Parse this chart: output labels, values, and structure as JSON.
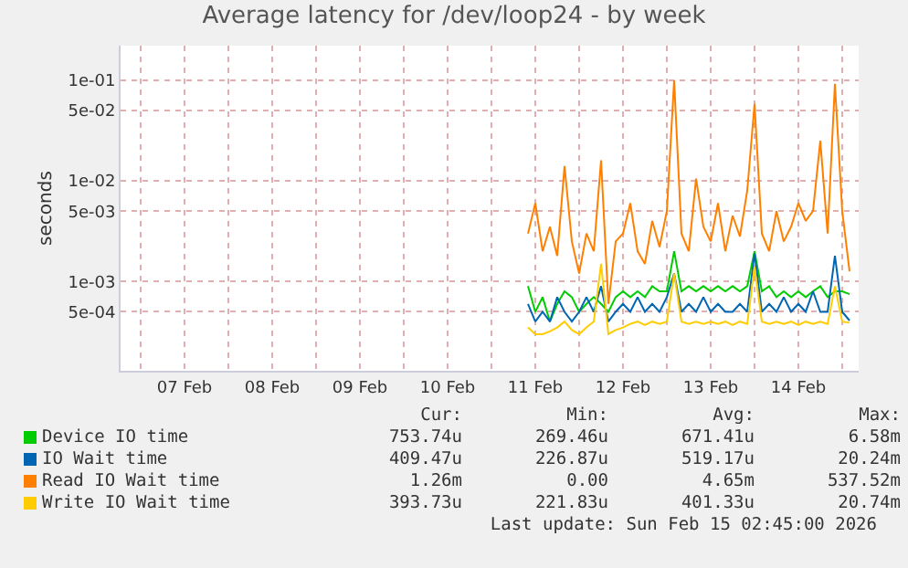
{
  "chart_data": {
    "type": "line",
    "title": "Average latency for /dev/loop24 - by week",
    "ylabel": "seconds",
    "log": "y",
    "grid": true,
    "legend": "bottom",
    "marker": "none",
    "line_style": "solid",
    "x": [
      "2026-02-11T10:00",
      "2026-02-11T12:00",
      "2026-02-11T14:00",
      "2026-02-11T16:00",
      "2026-02-11T18:00",
      "2026-02-11T20:00",
      "2026-02-11T22:00",
      "2026-02-12T00:00",
      "2026-02-12T02:00",
      "2026-02-12T04:00",
      "2026-02-12T06:00",
      "2026-02-12T08:00",
      "2026-02-12T10:00",
      "2026-02-12T12:00",
      "2026-02-12T14:00",
      "2026-02-12T16:00",
      "2026-02-12T18:00",
      "2026-02-12T20:00",
      "2026-02-12T22:00",
      "2026-02-13T00:00",
      "2026-02-13T02:00",
      "2026-02-13T04:00",
      "2026-02-13T06:00",
      "2026-02-13T08:00",
      "2026-02-13T10:00",
      "2026-02-13T12:00",
      "2026-02-13T14:00",
      "2026-02-13T16:00",
      "2026-02-13T18:00",
      "2026-02-13T20:00",
      "2026-02-13T22:00",
      "2026-02-14T00:00",
      "2026-02-14T02:00",
      "2026-02-14T04:00",
      "2026-02-14T06:00",
      "2026-02-14T08:00",
      "2026-02-14T10:00",
      "2026-02-14T12:00",
      "2026-02-14T14:00",
      "2026-02-14T16:00",
      "2026-02-14T18:00",
      "2026-02-14T20:00",
      "2026-02-14T22:00",
      "2026-02-15T00:00",
      "2026-02-15T02:00"
    ],
    "xlim": [
      "2026-02-06T18:30",
      "2026-02-15T04:30"
    ],
    "xticks": [
      {
        "value": "2026-02-07T00:00",
        "label": null
      },
      {
        "value": "2026-02-07T12:00",
        "label": "07 Feb"
      },
      {
        "value": "2026-02-08T00:00",
        "label": null
      },
      {
        "value": "2026-02-08T12:00",
        "label": "08 Feb"
      },
      {
        "value": "2026-02-09T00:00",
        "label": null
      },
      {
        "value": "2026-02-09T12:00",
        "label": "09 Feb"
      },
      {
        "value": "2026-02-10T00:00",
        "label": null
      },
      {
        "value": "2026-02-10T12:00",
        "label": "10 Feb"
      },
      {
        "value": "2026-02-11T00:00",
        "label": null
      },
      {
        "value": "2026-02-11T12:00",
        "label": "11 Feb"
      },
      {
        "value": "2026-02-12T00:00",
        "label": null
      },
      {
        "value": "2026-02-12T12:00",
        "label": "12 Feb"
      },
      {
        "value": "2026-02-13T00:00",
        "label": null
      },
      {
        "value": "2026-02-13T12:00",
        "label": "13 Feb"
      },
      {
        "value": "2026-02-14T00:00",
        "label": null
      },
      {
        "value": "2026-02-14T12:00",
        "label": "14 Feb"
      },
      {
        "value": "2026-02-15T00:00",
        "label": null
      }
    ],
    "ylim": [
      0.00013,
      0.22
    ],
    "yticks": [
      {
        "value": 0.1,
        "label": "1e-01"
      },
      {
        "value": 0.05,
        "label": "5e-02"
      },
      {
        "value": 0.01,
        "label": "1e-02"
      },
      {
        "value": 0.005,
        "label": "5e-03"
      },
      {
        "value": 0.001,
        "label": "1e-03"
      },
      {
        "value": 0.0005,
        "label": "5e-04"
      }
    ],
    "series": [
      {
        "name": "Device IO time",
        "color": "#00cc00",
        "values": [
          0.0009,
          0.0005,
          0.0007,
          0.0004,
          0.0006,
          0.0008,
          0.0007,
          0.0005,
          0.0006,
          0.0007,
          0.0006,
          0.0005,
          0.0007,
          0.0008,
          0.0007,
          0.0008,
          0.0007,
          0.0009,
          0.0008,
          0.0008,
          0.002,
          0.0008,
          0.0009,
          0.0008,
          0.0009,
          0.0008,
          0.0009,
          0.0008,
          0.0009,
          0.0008,
          0.0009,
          0.002,
          0.0008,
          0.0009,
          0.0007,
          0.0008,
          0.0007,
          0.0008,
          0.0007,
          0.0008,
          0.0009,
          0.0007,
          0.0008,
          0.0008,
          0.00075
        ]
      },
      {
        "name": "IO Wait time",
        "color": "#0066b3",
        "values": [
          0.0006,
          0.0004,
          0.0005,
          0.0004,
          0.0007,
          0.0005,
          0.0004,
          0.0005,
          0.0007,
          0.0005,
          0.0009,
          0.0004,
          0.0005,
          0.0006,
          0.0005,
          0.0007,
          0.0005,
          0.0006,
          0.0005,
          0.0007,
          0.0012,
          0.0005,
          0.0006,
          0.0005,
          0.0007,
          0.0005,
          0.0006,
          0.0005,
          0.0005,
          0.0006,
          0.0005,
          0.0019,
          0.0005,
          0.0006,
          0.0005,
          0.0007,
          0.0005,
          0.0006,
          0.0005,
          0.0008,
          0.0005,
          0.0005,
          0.0018,
          0.0005,
          0.00041
        ]
      },
      {
        "name": "Read IO Wait time",
        "color": "#ff8000",
        "values": [
          0.003,
          0.006,
          0.002,
          0.0035,
          0.0018,
          0.014,
          0.0025,
          0.0012,
          0.003,
          0.002,
          0.016,
          0.0006,
          0.0025,
          0.003,
          0.006,
          0.002,
          0.0015,
          0.004,
          0.0022,
          0.005,
          0.1,
          0.003,
          0.002,
          0.0105,
          0.0035,
          0.0025,
          0.006,
          0.002,
          0.0045,
          0.0028,
          0.008,
          0.058,
          0.003,
          0.002,
          0.005,
          0.0025,
          0.0035,
          0.006,
          0.004,
          0.005,
          0.025,
          0.003,
          0.092,
          0.005,
          0.00126
        ]
      },
      {
        "name": "Write IO Wait time",
        "color": "#ffcc00",
        "values": [
          0.00035,
          0.0003,
          0.0003,
          0.00032,
          0.00035,
          0.0004,
          0.00033,
          0.0003,
          0.00035,
          0.0004,
          0.0015,
          0.0003,
          0.00033,
          0.00035,
          0.00038,
          0.0004,
          0.00037,
          0.0004,
          0.00038,
          0.0004,
          0.0012,
          0.0004,
          0.00038,
          0.0004,
          0.00038,
          0.0004,
          0.00038,
          0.0004,
          0.00037,
          0.0004,
          0.00038,
          0.0014,
          0.0004,
          0.00038,
          0.0004,
          0.00038,
          0.0004,
          0.00037,
          0.0004,
          0.00038,
          0.0004,
          0.00038,
          0.0009,
          0.0004,
          0.00039
        ]
      }
    ],
    "annotations": [
      "Cur:",
      "Min:",
      "Avg:",
      "Max:",
      "753.74u",
      "269.46u",
      "671.41u",
      "6.58m",
      "409.47u",
      "226.87u",
      "519.17u",
      "20.24m",
      "1.26m",
      "0.00",
      "4.65m",
      "537.52m",
      "393.73u",
      "221.83u",
      "401.33u",
      "20.74m",
      "Last update: Sun Feb 15 02:45:00 2026"
    ]
  }
}
